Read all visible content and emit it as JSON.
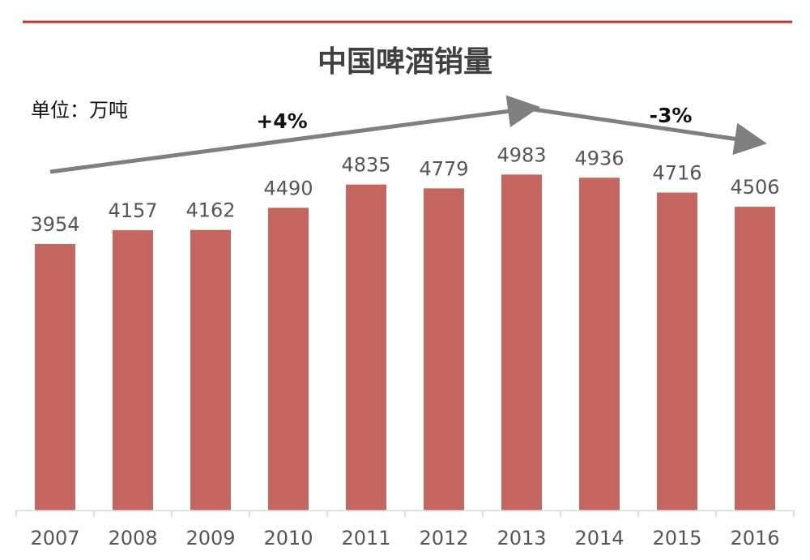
{
  "chart_data": {
    "type": "bar",
    "title": "中国啤酒销量",
    "unit_label": "单位：万吨",
    "categories": [
      "2007",
      "2008",
      "2009",
      "2010",
      "2011",
      "2012",
      "2013",
      "2014",
      "2015",
      "2016"
    ],
    "values": [
      3954,
      4157,
      4162,
      4490,
      4835,
      4779,
      4983,
      4936,
      4716,
      4506
    ],
    "bar_color": "#c5665f",
    "top_rule_color": "#c0392b",
    "trend_arrows": [
      {
        "label": "+4%",
        "from_category": "2007",
        "to_category": "2013",
        "color": "#7f7f7f"
      },
      {
        "label": "-3%",
        "from_category": "2013",
        "to_category": "2016",
        "color": "#7f7f7f"
      }
    ],
    "grid": false,
    "legend": "none"
  }
}
